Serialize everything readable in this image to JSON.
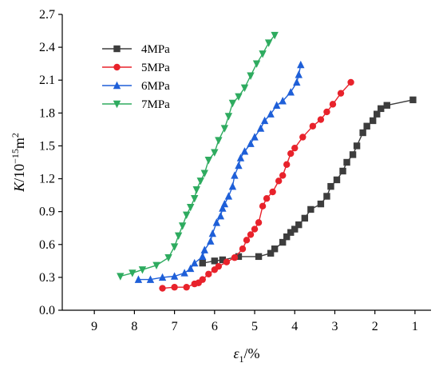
{
  "chart_data": {
    "type": "line",
    "title": "",
    "xlabel": "ε1/%",
    "ylabel": "K/10^-15 m^2",
    "xlabel_parts": {
      "main": "ε",
      "sub": "1",
      "tail": "/%"
    },
    "ylabel_parts": {
      "main": "K",
      "tail": "/10",
      "sup": "−15",
      "unit": "m",
      "unit_sup": "2"
    },
    "xlim": [
      9.8,
      0.6
    ],
    "ylim": [
      0.0,
      2.7
    ],
    "x_reversed": true,
    "x_ticks": [
      9,
      8,
      7,
      6,
      5,
      4,
      3,
      2,
      1
    ],
    "x_tick_labels": [
      "9",
      "8",
      "7",
      "6",
      "5",
      "4",
      "3",
      "2",
      "1"
    ],
    "y_ticks": [
      0.0,
      0.3,
      0.6,
      0.9,
      1.2,
      1.5,
      1.8,
      2.1,
      2.4,
      2.7
    ],
    "y_tick_labels": [
      "0.0",
      "0.3",
      "0.6",
      "0.9",
      "1.2",
      "1.5",
      "1.8",
      "2.1",
      "2.4",
      "2.7"
    ],
    "grid": false,
    "legend_position": "top-left",
    "series": [
      {
        "name": "4MPa",
        "color": "#3d3d3d",
        "marker": "square",
        "points": [
          [
            6.3,
            0.43
          ],
          [
            6.0,
            0.45
          ],
          [
            5.8,
            0.46
          ],
          [
            5.4,
            0.49
          ],
          [
            4.9,
            0.49
          ],
          [
            4.6,
            0.52
          ],
          [
            4.5,
            0.56
          ],
          [
            4.3,
            0.62
          ],
          [
            4.2,
            0.67
          ],
          [
            4.1,
            0.71
          ],
          [
            4.0,
            0.74
          ],
          [
            3.9,
            0.78
          ],
          [
            3.75,
            0.84
          ],
          [
            3.6,
            0.92
          ],
          [
            3.35,
            0.97
          ],
          [
            3.2,
            1.04
          ],
          [
            3.1,
            1.13
          ],
          [
            2.95,
            1.19
          ],
          [
            2.8,
            1.27
          ],
          [
            2.7,
            1.35
          ],
          [
            2.55,
            1.42
          ],
          [
            2.45,
            1.5
          ],
          [
            2.3,
            1.62
          ],
          [
            2.2,
            1.68
          ],
          [
            2.05,
            1.73
          ],
          [
            1.95,
            1.79
          ],
          [
            1.85,
            1.84
          ],
          [
            1.7,
            1.87
          ],
          [
            1.05,
            1.92
          ]
        ]
      },
      {
        "name": "5MPa",
        "color": "#e8222b",
        "marker": "circle",
        "points": [
          [
            7.3,
            0.2
          ],
          [
            7.0,
            0.21
          ],
          [
            6.7,
            0.21
          ],
          [
            6.5,
            0.24
          ],
          [
            6.4,
            0.25
          ],
          [
            6.3,
            0.28
          ],
          [
            6.15,
            0.33
          ],
          [
            6.0,
            0.37
          ],
          [
            5.9,
            0.4
          ],
          [
            5.7,
            0.44
          ],
          [
            5.5,
            0.48
          ],
          [
            5.3,
            0.56
          ],
          [
            5.2,
            0.64
          ],
          [
            5.1,
            0.69
          ],
          [
            5.0,
            0.74
          ],
          [
            4.9,
            0.8
          ],
          [
            4.8,
            0.95
          ],
          [
            4.7,
            1.02
          ],
          [
            4.55,
            1.08
          ],
          [
            4.4,
            1.18
          ],
          [
            4.3,
            1.23
          ],
          [
            4.2,
            1.33
          ],
          [
            4.1,
            1.43
          ],
          [
            4.0,
            1.48
          ],
          [
            3.8,
            1.58
          ],
          [
            3.55,
            1.68
          ],
          [
            3.35,
            1.74
          ],
          [
            3.2,
            1.81
          ],
          [
            3.05,
            1.88
          ],
          [
            2.85,
            1.98
          ],
          [
            2.6,
            2.08
          ]
        ]
      },
      {
        "name": "6MPa",
        "color": "#1e5fd8",
        "marker": "triangle-up",
        "points": [
          [
            7.9,
            0.28
          ],
          [
            7.6,
            0.28
          ],
          [
            7.3,
            0.3
          ],
          [
            7.0,
            0.31
          ],
          [
            6.75,
            0.34
          ],
          [
            6.6,
            0.38
          ],
          [
            6.5,
            0.43
          ],
          [
            6.3,
            0.49
          ],
          [
            6.25,
            0.55
          ],
          [
            6.1,
            0.63
          ],
          [
            6.05,
            0.7
          ],
          [
            5.95,
            0.8
          ],
          [
            5.85,
            0.86
          ],
          [
            5.8,
            0.93
          ],
          [
            5.75,
            0.97
          ],
          [
            5.65,
            1.04
          ],
          [
            5.55,
            1.13
          ],
          [
            5.5,
            1.23
          ],
          [
            5.4,
            1.32
          ],
          [
            5.35,
            1.39
          ],
          [
            5.25,
            1.45
          ],
          [
            5.1,
            1.52
          ],
          [
            5.0,
            1.58
          ],
          [
            4.85,
            1.66
          ],
          [
            4.75,
            1.73
          ],
          [
            4.6,
            1.79
          ],
          [
            4.45,
            1.87
          ],
          [
            4.3,
            1.91
          ],
          [
            4.1,
            1.99
          ],
          [
            3.95,
            2.08
          ],
          [
            3.9,
            2.15
          ],
          [
            3.85,
            2.24
          ]
        ]
      },
      {
        "name": "7MPa",
        "color": "#2eab5f",
        "marker": "triangle-down",
        "points": [
          [
            8.35,
            0.31
          ],
          [
            8.05,
            0.34
          ],
          [
            7.8,
            0.37
          ],
          [
            7.45,
            0.41
          ],
          [
            7.15,
            0.48
          ],
          [
            7.0,
            0.58
          ],
          [
            6.9,
            0.68
          ],
          [
            6.8,
            0.77
          ],
          [
            6.7,
            0.87
          ],
          [
            6.6,
            0.94
          ],
          [
            6.5,
            1.02
          ],
          [
            6.45,
            1.1
          ],
          [
            6.35,
            1.18
          ],
          [
            6.25,
            1.25
          ],
          [
            6.15,
            1.37
          ],
          [
            6.0,
            1.44
          ],
          [
            5.9,
            1.55
          ],
          [
            5.75,
            1.66
          ],
          [
            5.65,
            1.77
          ],
          [
            5.55,
            1.89
          ],
          [
            5.4,
            1.95
          ],
          [
            5.25,
            2.03
          ],
          [
            5.1,
            2.14
          ],
          [
            4.95,
            2.25
          ],
          [
            4.8,
            2.34
          ],
          [
            4.65,
            2.44
          ],
          [
            4.5,
            2.51
          ]
        ]
      }
    ]
  }
}
